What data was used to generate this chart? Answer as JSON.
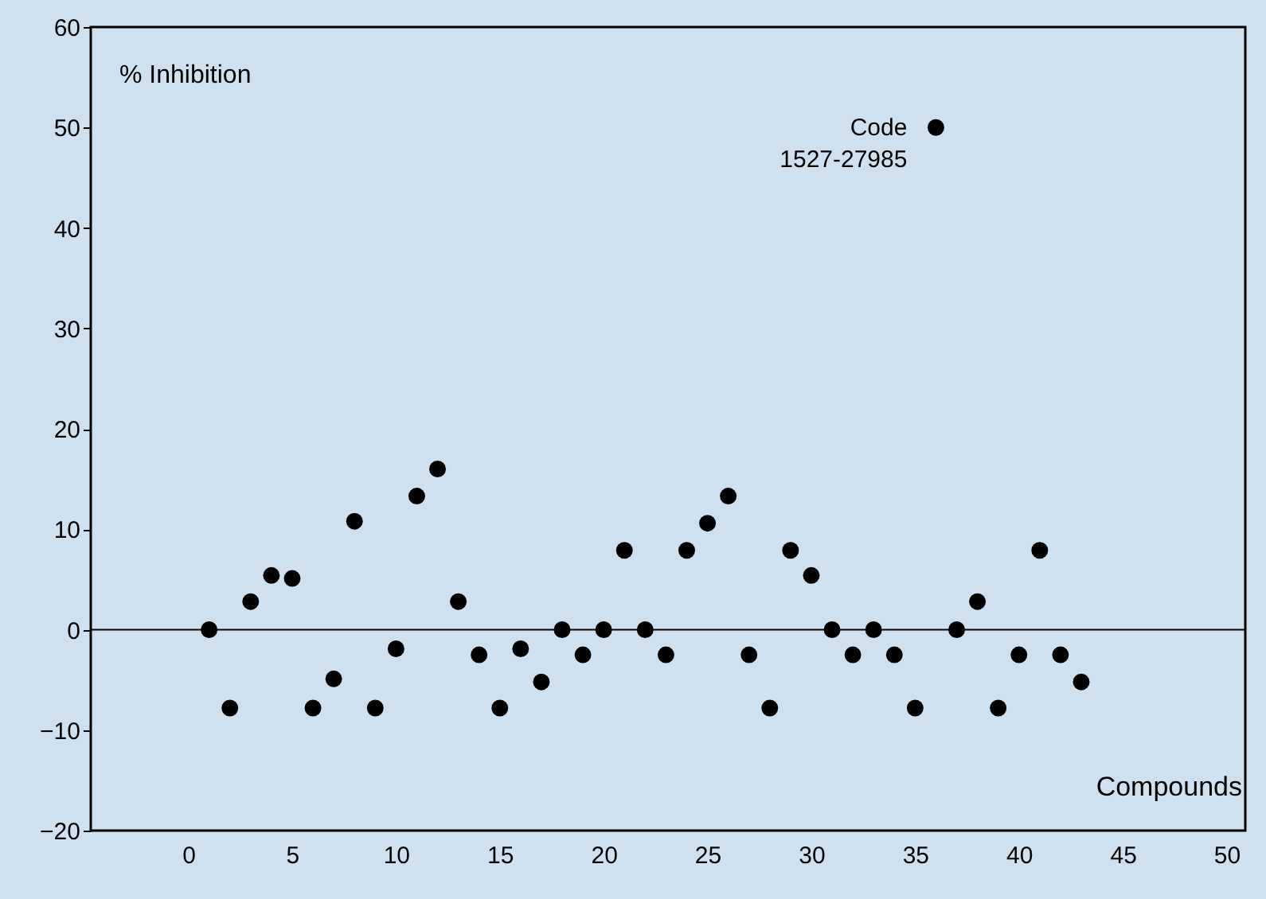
{
  "chart_data": {
    "type": "scatter",
    "xlabel": "Compounds",
    "ylabel": "% Inhibition",
    "x": [
      1,
      2,
      3,
      4,
      5,
      6,
      7,
      8,
      9,
      10,
      11,
      12,
      13,
      14,
      15,
      16,
      17,
      18,
      19,
      20,
      21,
      22,
      23,
      24,
      25,
      26,
      27,
      28,
      29,
      30,
      31,
      32,
      33,
      34,
      35,
      36,
      37,
      38,
      39,
      40,
      41,
      42,
      43
    ],
    "series": [
      {
        "color": "#000000",
        "values": [
          0,
          -7.8,
          2.8,
          5.4,
          5.1,
          -7.8,
          -4.9,
          10.8,
          -7.8,
          -1.9,
          13.3,
          16,
          2.8,
          -2.5,
          -7.8,
          -1.9,
          -5.2,
          0,
          -2.5,
          0,
          7.9,
          0,
          -2.5,
          7.9,
          10.6,
          13.3,
          -2.5,
          -7.8,
          7.9,
          5.4,
          0,
          -2.5,
          0,
          -2.5,
          -7.8,
          50,
          0,
          2.8,
          -7.8,
          -2.5,
          7.9,
          -2.5,
          -5.2
        ]
      }
    ],
    "annotations": [
      {
        "text": "Code\n1527-27985",
        "x": 36,
        "y": 50
      }
    ],
    "ref_lines": [
      {
        "axis": "y",
        "value": 0,
        "color": "#000000"
      }
    ],
    "xlim": [
      -4.7,
      50.9
    ],
    "ylim": [
      -20,
      60
    ],
    "xticks": [
      0,
      5,
      10,
      15,
      20,
      25,
      30,
      35,
      40,
      45,
      50
    ],
    "yticks": [
      -20,
      -10,
      0,
      10,
      20,
      30,
      40,
      50,
      60
    ],
    "marker": "circle",
    "grid": false
  }
}
